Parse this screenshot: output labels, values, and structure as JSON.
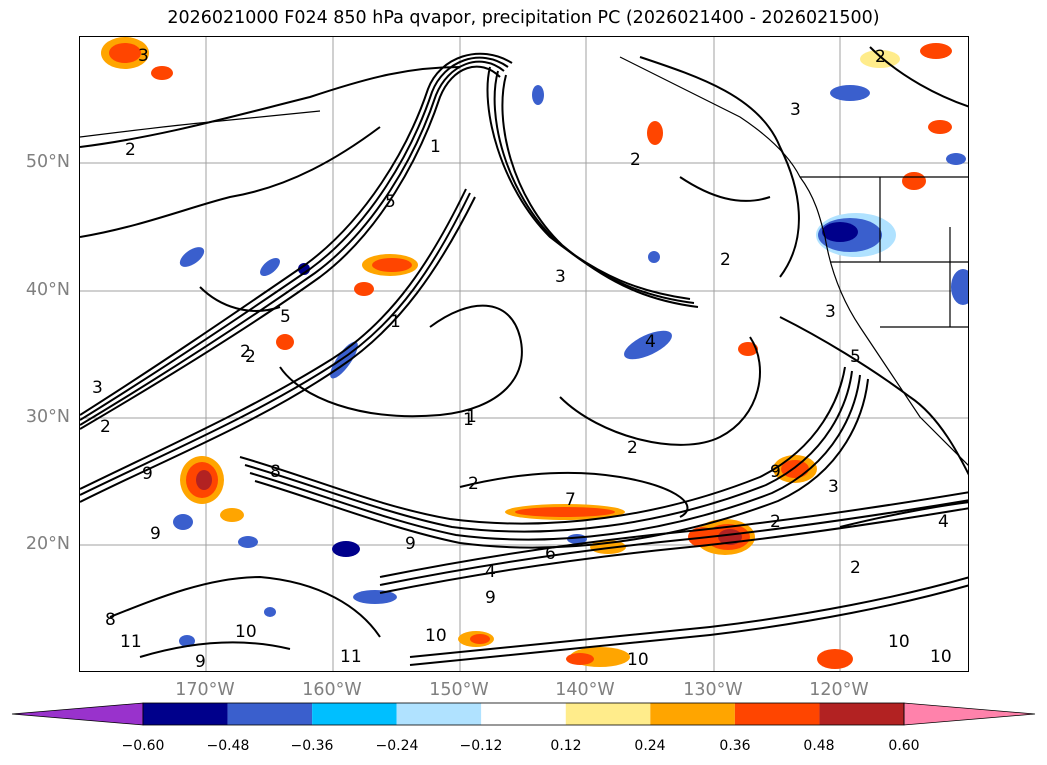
{
  "title": "2026021000 F024 850 hPa qvapor, precipitation PC (2026021400 - 2026021500)",
  "lat_labels": [
    "50°N",
    "40°N",
    "30°N",
    "20°N"
  ],
  "lon_labels": [
    "170°W",
    "160°W",
    "150°W",
    "140°W",
    "130°W",
    "120°W"
  ],
  "colorbar": {
    "tick_labels": [
      "−0.60",
      "−0.48",
      "−0.36",
      "−0.24",
      "−0.12",
      "0.12",
      "0.24",
      "0.36",
      "0.48",
      "0.60"
    ],
    "colors": [
      "#9932cc",
      "#00008b",
      "#3a5fcd",
      "#00bfff",
      "#b0e2ff",
      "#ffffff",
      "#ffec8b",
      "#ffa500",
      "#ff4500",
      "#b22222",
      "#ff82ab"
    ]
  },
  "contour_labels": [
    "3",
    "2",
    "1",
    "5",
    "3",
    "2",
    "3",
    "2",
    "2",
    "1",
    "3",
    "9",
    "9",
    "8",
    "1",
    "2",
    "2",
    "1",
    "2",
    "2",
    "3",
    "4",
    "9",
    "9",
    "7",
    "6",
    "4",
    "9",
    "2",
    "8",
    "10",
    "11",
    "10",
    "11",
    "9",
    "10",
    "10",
    "4",
    "2",
    "3",
    "5",
    "5",
    "2",
    "10"
  ]
}
